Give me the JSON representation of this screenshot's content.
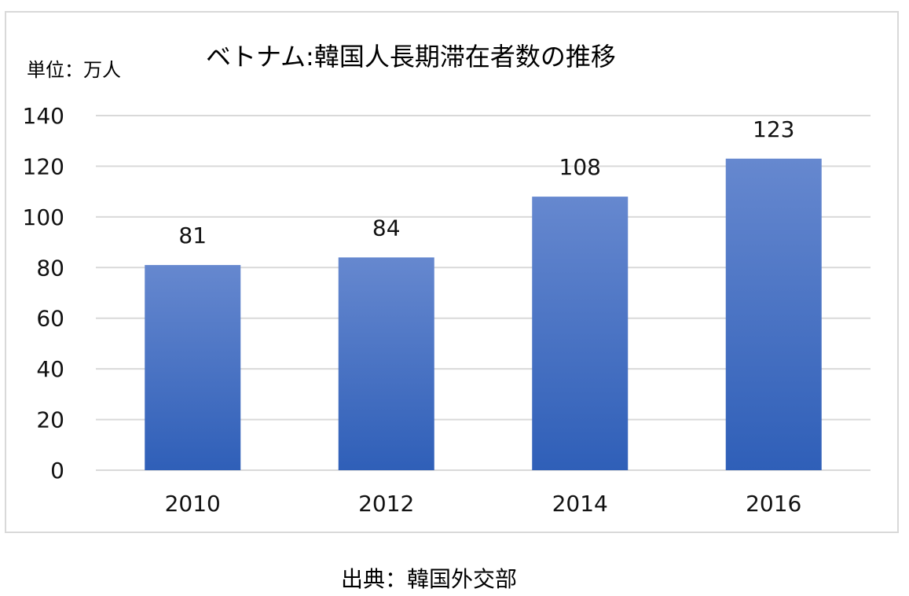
{
  "chart_data": {
    "type": "bar",
    "title": "ベトナム:韓国人長期滞在者数の推移",
    "unit_label": "単位：万人",
    "source_note": "出典：韓国外交部",
    "xlabel": "",
    "ylabel": "",
    "categories": [
      "2010",
      "2012",
      "2014",
      "2016"
    ],
    "values": [
      81,
      84,
      108,
      123
    ],
    "data_labels": [
      "81",
      "84",
      "108",
      "123"
    ],
    "ylim": [
      0,
      140
    ],
    "yticks": [
      0,
      20,
      40,
      60,
      80,
      100,
      120,
      140
    ],
    "grid": true,
    "legend": "none",
    "colors": {
      "bar_top": "#6688cf",
      "bar_bottom": "#2f5fb8",
      "grid": "#d9d9d9",
      "frame": "#d9d9d9"
    }
  }
}
